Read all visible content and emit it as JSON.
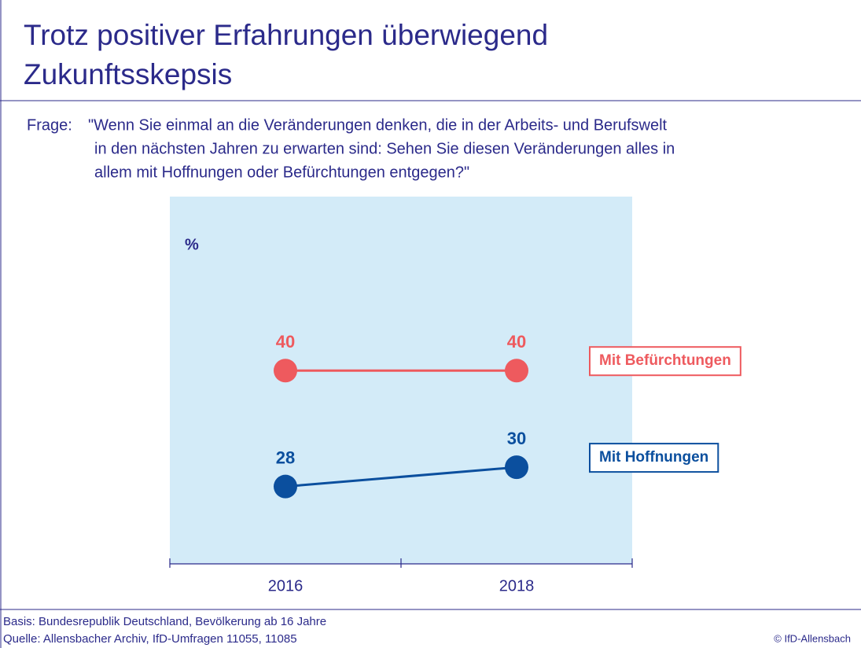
{
  "chart_data": {
    "type": "line",
    "title_lines": [
      "Trotz positiver Erfahrungen überwiegend",
      "Zukunftsskepsis"
    ],
    "question_label": "Frage:",
    "question_lines": [
      "\"Wenn Sie einmal an die Veränderungen denken, die in der Arbeits- und Berufswelt",
      "in den nächsten Jahren zu erwarten sind: Sehen Sie diesen Veränderungen alles in",
      "allem mit Hoffnungen oder Befürchtungen entgegen?\""
    ],
    "unit_label": "%",
    "categories": [
      "2016",
      "2018"
    ],
    "series": [
      {
        "name": "Mit Befürchtungen",
        "color": "#ee5a5e",
        "values": [
          40,
          40
        ]
      },
      {
        "name": "Mit Hoffnungen",
        "color": "#0b4f9e",
        "values": [
          28,
          30
        ]
      }
    ],
    "ylim": [
      20,
      58
    ],
    "notes": [
      "Basis: Bundesrepublik Deutschland, Bevölkerung ab 16 Jahre",
      "Quelle: Allensbacher Archiv, IfD-Umfragen 11055, 11085"
    ],
    "credit": "© IfD-Allensbach"
  }
}
